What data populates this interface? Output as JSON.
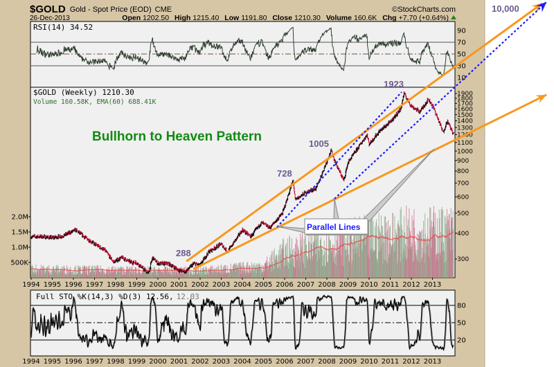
{
  "header": {
    "symbol": "$GOLD",
    "name": "Gold - Spot Price (EOD)",
    "exchange": "CME",
    "date": "26-Dec-2013",
    "copyright": "©StockCharts.com",
    "open_label": "Open",
    "open": "1202.50",
    "high_label": "High",
    "high": "1215.40",
    "low_label": "Low",
    "low": "1191.80",
    "close_label": "Close",
    "close": "1210.30",
    "volume_label": "Volume",
    "volume": "160.6K",
    "chg_label": "Chg",
    "chg": "+7.70 (+0.64%)"
  },
  "colors": {
    "frame": "#d6c6a6",
    "panel": "#f0f0f0",
    "up": "#000000",
    "down": "#d0103a",
    "trendline": "#f7981d",
    "dotted": "#1a1aff",
    "annotation": "#6b5b8e",
    "title": "#128a12",
    "volume_up": "#8fae8f",
    "volume_down": "#c97a90"
  },
  "chart_data": [
    {
      "type": "line",
      "panel": "rsi",
      "legend": "RSI(14) 34.52",
      "current": 34.52,
      "ylim": [
        0,
        100
      ],
      "y_ticks": [
        "90",
        "70",
        "50",
        "30",
        "10"
      ],
      "levels": [
        70,
        50,
        30
      ]
    },
    {
      "type": "ohlc",
      "panel": "price",
      "legend": "$GOLD (Weekly) 1210.30",
      "volume_legend": "Volume 160.58K, EMA(60) 688.41K",
      "y_scale": "log",
      "ylim": [
        255,
        1950
      ],
      "y_ticks": [
        "1900",
        "1800",
        "1700",
        "1600",
        "1500",
        "1400",
        "1300",
        "1200",
        "1100",
        "1000",
        "900",
        "800",
        "700",
        "600",
        "500",
        "400",
        "300"
      ],
      "volume_ticks": [
        "2.0M",
        "1.5M",
        "1.0M",
        "500K"
      ],
      "x_ticks": [
        "1994",
        "1995",
        "1996",
        "1997",
        "1998",
        "1999",
        "2000",
        "2001",
        "2002",
        "2003",
        "2004",
        "2005",
        "2006",
        "2007",
        "2008",
        "2009",
        "2010",
        "2011",
        "2012",
        "2013"
      ],
      "price_anchors": [
        [
          1994.0,
          385
        ],
        [
          1994.5,
          385
        ],
        [
          1995.0,
          380
        ],
        [
          1995.5,
          388
        ],
        [
          1996.1,
          415
        ],
        [
          1996.5,
          385
        ],
        [
          1997.0,
          355
        ],
        [
          1997.5,
          330
        ],
        [
          1997.9,
          290
        ],
        [
          1998.3,
          305
        ],
        [
          1998.7,
          290
        ],
        [
          1999.0,
          288
        ],
        [
          1999.55,
          255
        ],
        [
          1999.75,
          305
        ],
        [
          2000.0,
          285
        ],
        [
          2000.5,
          285
        ],
        [
          2001.0,
          265
        ],
        [
          2001.3,
          260
        ],
        [
          2001.7,
          285
        ],
        [
          2002.0,
          280
        ],
        [
          2002.4,
          325
        ],
        [
          2003.0,
          355
        ],
        [
          2003.3,
          325
        ],
        [
          2004.0,
          415
        ],
        [
          2004.4,
          385
        ],
        [
          2004.9,
          450
        ],
        [
          2005.3,
          425
        ],
        [
          2005.9,
          500
        ],
        [
          2006.4,
          720
        ],
        [
          2006.5,
          580
        ],
        [
          2007.0,
          630
        ],
        [
          2007.5,
          660
        ],
        [
          2008.2,
          1005
        ],
        [
          2008.4,
          880
        ],
        [
          2008.8,
          720
        ],
        [
          2009.0,
          880
        ],
        [
          2009.9,
          1200
        ],
        [
          2010.0,
          1080
        ],
        [
          2010.5,
          1250
        ],
        [
          2011.0,
          1380
        ],
        [
          2011.5,
          1600
        ],
        [
          2011.65,
          1900
        ],
        [
          2012.0,
          1650
        ],
        [
          2012.4,
          1550
        ],
        [
          2012.8,
          1780
        ],
        [
          2013.0,
          1670
        ],
        [
          2013.3,
          1400
        ],
        [
          2013.5,
          1230
        ],
        [
          2013.7,
          1400
        ],
        [
          2013.99,
          1210
        ]
      ],
      "volume_anchors_millions": [
        [
          1994,
          0.3
        ],
        [
          2000,
          0.25
        ],
        [
          2002,
          0.25
        ],
        [
          2005,
          0.4
        ],
        [
          2006,
          0.9
        ],
        [
          2008,
          1.2
        ],
        [
          2010,
          1.4
        ],
        [
          2011,
          1.5
        ],
        [
          2012,
          1.6
        ],
        [
          2013.99,
          1.6
        ]
      ],
      "annotations": {
        "title": "Bullhorn to Heaven Pattern",
        "labels": [
          "288",
          "728",
          "1005",
          "1923",
          "10,000"
        ],
        "callout": "Parallel Lines"
      },
      "trendlines": [
        {
          "style": "solid-orange",
          "from": [
            2001.35,
            292
          ],
          "to": [
            2018.2,
            5190
          ],
          "arrow": true
        },
        {
          "style": "solid-orange",
          "from": [
            2001.7,
            269
          ],
          "to": [
            2018.4,
            1873
          ],
          "arrow": true
        },
        {
          "style": "dotted-blue",
          "from": [
            2005.64,
            428
          ],
          "to": [
            2011.54,
            1930
          ],
          "arrow": false
        },
        {
          "style": "dotted-blue",
          "from": [
            2008.36,
            587
          ],
          "to": [
            2018.4,
            5270
          ],
          "arrow": true
        }
      ]
    },
    {
      "type": "line",
      "panel": "stochastic",
      "legend_k": "Full STO %K(14,3) %D(3) 12.56,",
      "legend_d": "12.03",
      "current_k": 12.56,
      "current_d": 12.03,
      "ylim": [
        0,
        100
      ],
      "y_ticks": [
        "80",
        "50",
        "20"
      ],
      "levels": [
        80,
        50,
        20
      ],
      "x_ticks": [
        "1994",
        "1995",
        "1996",
        "1997",
        "1998",
        "1999",
        "2000",
        "2001",
        "2002",
        "2003",
        "2004",
        "2005",
        "2006",
        "2007",
        "2008",
        "2009",
        "2010",
        "2011",
        "2012",
        "2013"
      ]
    }
  ]
}
